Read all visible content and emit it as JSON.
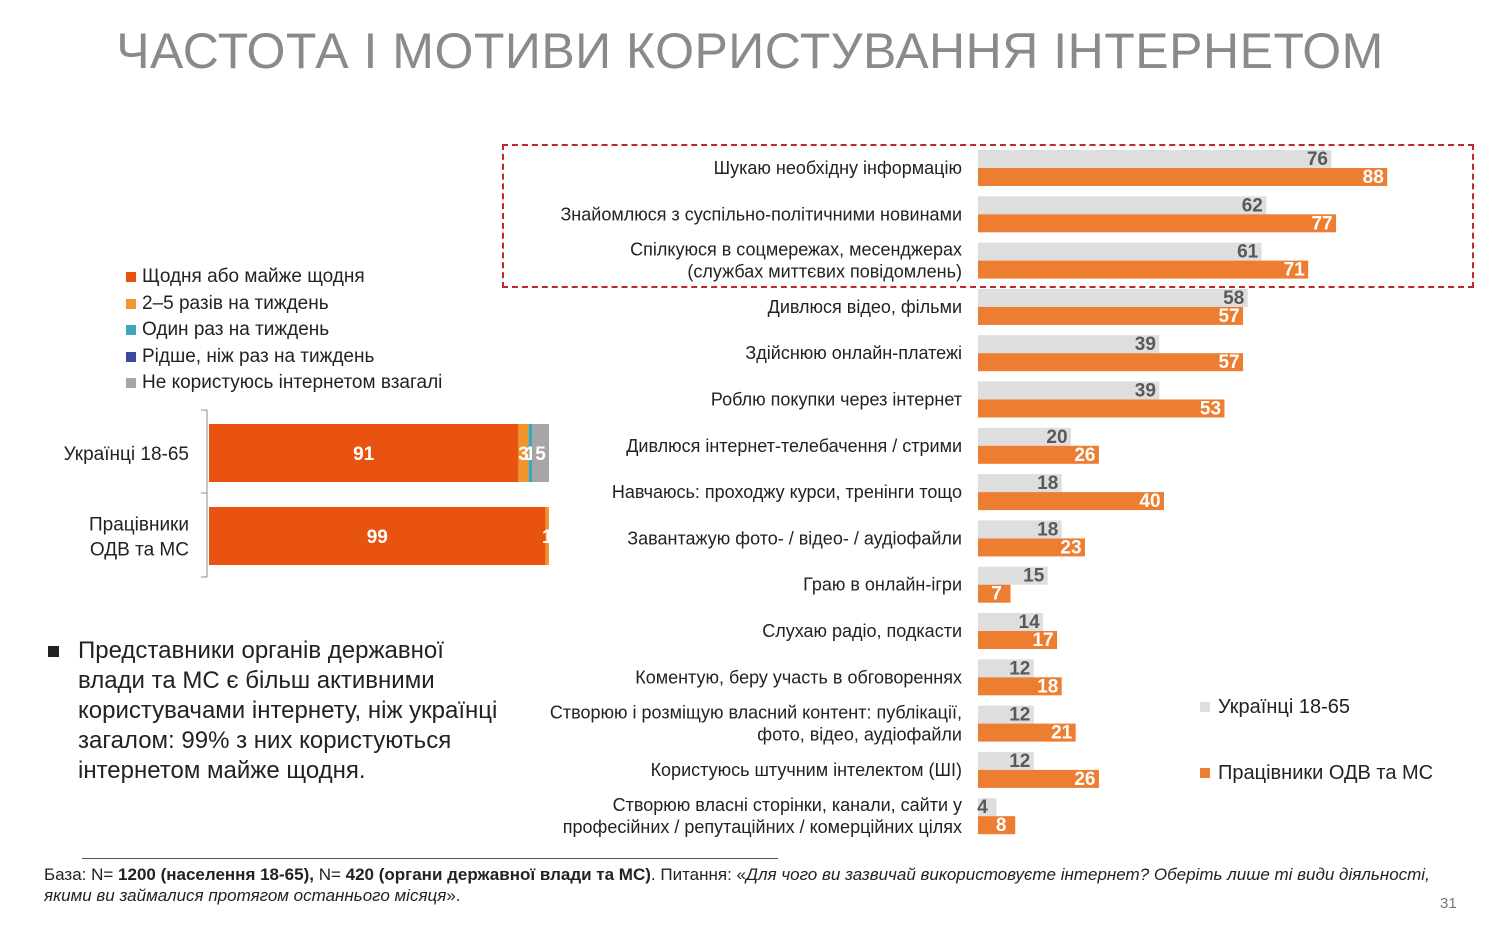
{
  "title": "ЧАСТОТА І МОТИВИ КОРИСТУВАННЯ ІНТЕРНЕТОМ",
  "stack_legend": [
    {
      "label": "Щодня або майже щодня",
      "color": "#e8530f"
    },
    {
      "label": "2–5 разів на тиждень",
      "color": "#f0962d"
    },
    {
      "label": "Один раз на тиждень",
      "color": "#3aa7be"
    },
    {
      "label": "Рідше, ніж раз на тиждень",
      "color": "#3b4aa0"
    },
    {
      "label": "Не користуюсь інтернетом взагалі",
      "color": "#a6a6a6"
    }
  ],
  "bullet": "Представники органів державної влади та МС є більш активними користувачами інтернету, ніж українці загалом: 99% з них користуються інтернетом майже щодня.",
  "chart_data": [
    {
      "type": "bar",
      "orientation": "horizontal-stacked",
      "categories": [
        [
          "Українці 18-65"
        ],
        [
          "Працівники",
          "ОДВ та МС"
        ]
      ],
      "series": [
        {
          "name": "Щодня або майже щодня",
          "color": "#e8530f",
          "values": [
            91,
            99
          ],
          "labels": [
            "91",
            "99"
          ]
        },
        {
          "name": "2–5 разів на тиждень",
          "color": "#f0962d",
          "values": [
            3,
            1
          ],
          "labels": [
            "3",
            "1"
          ]
        },
        {
          "name": "Один раз на тиждень",
          "color": "#3aa7be",
          "values": [
            1,
            0
          ],
          "labels": [
            "1",
            ""
          ]
        },
        {
          "name": "Рідше, ніж раз на тиждень",
          "color": "#3b4aa0",
          "values": [
            0,
            0
          ],
          "labels": [
            "",
            ""
          ]
        },
        {
          "name": "Не користуюсь інтернетом взагалі",
          "color": "#a6a6a6",
          "values": [
            5,
            0
          ],
          "labels": [
            "5",
            ""
          ]
        }
      ],
      "xlim": [
        0,
        100
      ]
    },
    {
      "type": "bar",
      "orientation": "horizontal",
      "categories": [
        [
          "Шукаю необхідну інформацію"
        ],
        [
          "Знайомлюся з суспільно-політичними новинами"
        ],
        [
          "Спілкуюся в соцмережах, месенджерах",
          "(службах миттєвих повідомлень)"
        ],
        [
          "Дивлюся відео, фільми"
        ],
        [
          "Здійснюю онлайн-платежі"
        ],
        [
          "Роблю покупки через інтернет"
        ],
        [
          "Дивлюся інтернет-телебачення / стрими"
        ],
        [
          "Навчаюсь: проходжу курси, тренінги тощо"
        ],
        [
          "Завантажую фото- / відео- / аудіофайли"
        ],
        [
          "Граю в онлайн-ігри"
        ],
        [
          "Слухаю радіо, подкасти"
        ],
        [
          "Коментую, беру участь в обговореннях"
        ],
        [
          "Створюю і розміщую власний контент: публікації,",
          "фото, відео, аудіофайли"
        ],
        [
          "Користуюсь штучним інтелектом (ШІ)"
        ],
        [
          "Створюю власні сторінки, канали, сайти у",
          "професійних / репутаційних / комерційних цілях"
        ]
      ],
      "series": [
        {
          "name": "Українці 18-65",
          "color": "#dedede",
          "label_color": "#595959",
          "values": [
            76,
            62,
            61,
            58,
            39,
            39,
            20,
            18,
            18,
            15,
            14,
            12,
            12,
            12,
            4
          ]
        },
        {
          "name": "Працівники ОДВ та МС",
          "color": "#ed7d31",
          "label_color": "#ffffff",
          "values": [
            88,
            77,
            71,
            57,
            57,
            53,
            26,
            40,
            23,
            7,
            17,
            18,
            21,
            26,
            8
          ]
        }
      ],
      "xlim": [
        0,
        100
      ]
    }
  ],
  "bar_legend": [
    {
      "label": "Українці 18-65",
      "color": "#dedede"
    },
    {
      "label": "Працівники ОДВ та МС",
      "color": "#ed7d31"
    }
  ],
  "footnote": {
    "prefix": "База: N= ",
    "n1": "1200 (населення 18-65),",
    "mid": " N= ",
    "n2": "420 (органи державної влади та МС)",
    "q_label": ". Питання: «",
    "question": "Для чого ви зазвичай використовуєте інтернет? Оберіть лише ті види діяльності, якими ви займалися протягом останнього місяця",
    "end": "»."
  },
  "page_number": "31"
}
